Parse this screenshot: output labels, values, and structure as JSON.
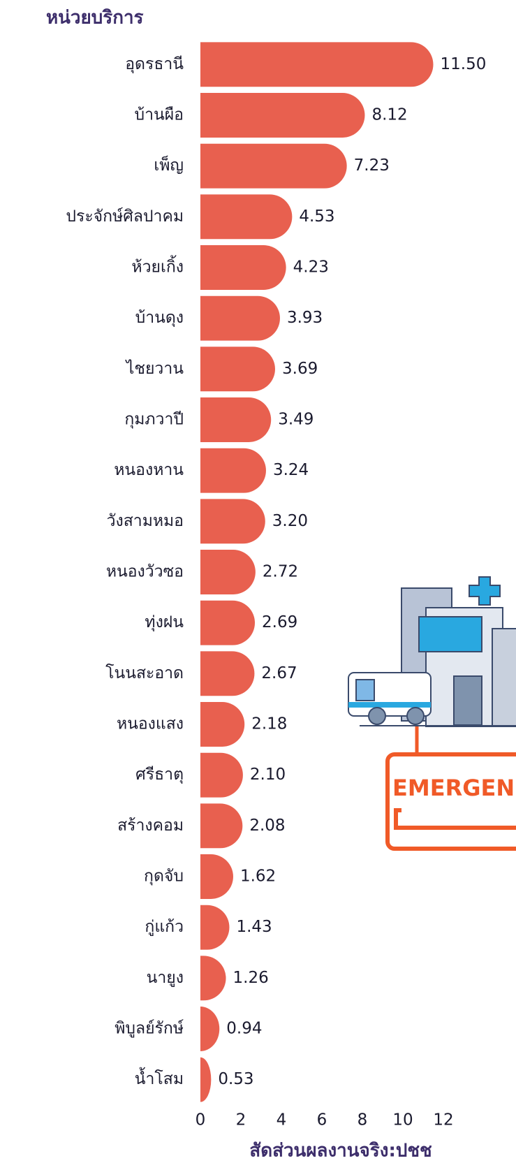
{
  "chart_data": {
    "type": "barh",
    "y_axis_title": "หน่วยบริการ",
    "x_axis_title": "สัดส่วนผลงานจริง:ปชช",
    "categories": [
      "อุดรธานี",
      "บ้านผือ",
      "เพ็ญ",
      "ประจักษ์ศิลปาคม",
      "ห้วยเกิ้ง",
      "บ้านดุง",
      "ไชยวาน",
      "กุมภวาปี",
      "หนองหาน",
      "วังสามหมอ",
      "หนองวัวซอ",
      "ทุ่งฝน",
      "โนนสะอาด",
      "หนองแสง",
      "ศรีธาตุ",
      "สร้างคอม",
      "กุดจับ",
      "กู่แก้ว",
      "นายูง",
      "พิบูลย์รักษ์",
      "น้ำโสม"
    ],
    "values": [
      11.5,
      8.12,
      7.23,
      4.53,
      4.23,
      3.93,
      3.69,
      3.49,
      3.24,
      3.2,
      2.72,
      2.69,
      2.67,
      2.18,
      2.1,
      2.08,
      1.62,
      1.43,
      1.26,
      0.94,
      0.53
    ],
    "value_labels": [
      "11.50",
      "8.12",
      "7.23",
      "4.53",
      "4.23",
      "3.93",
      "3.69",
      "3.49",
      "3.24",
      "3.20",
      "2.72",
      "2.69",
      "2.67",
      "2.18",
      "2.10",
      "2.08",
      "1.62",
      "1.43",
      "1.26",
      "0.94",
      "0.53"
    ],
    "color": "#e8604f",
    "xlim": [
      0,
      12
    ],
    "xticks": [
      0,
      2,
      4,
      6,
      8,
      10,
      12
    ],
    "grid": false
  },
  "illustration_text": "EMERGEN"
}
